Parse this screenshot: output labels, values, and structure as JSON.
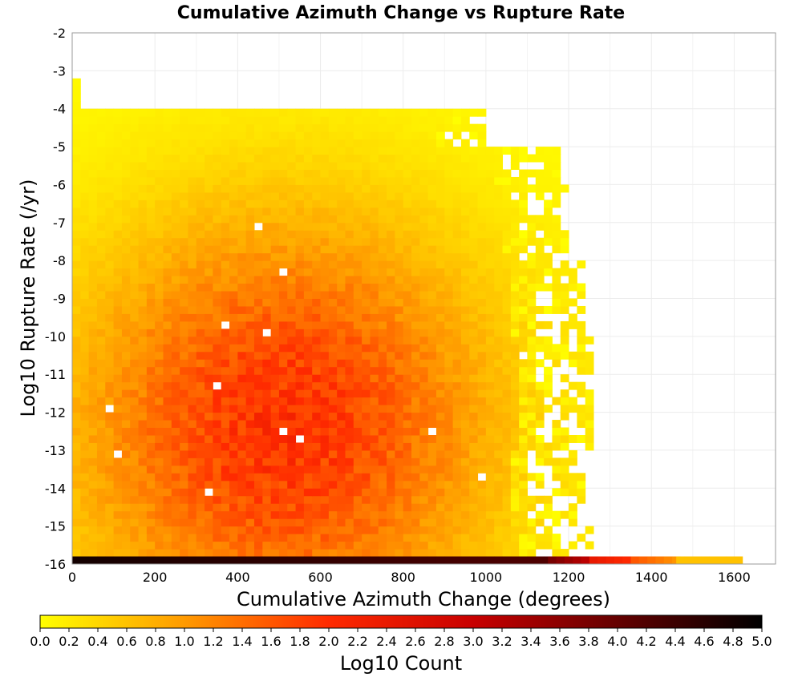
{
  "chart_data": {
    "type": "heatmap",
    "title": "Cumulative Azimuth Change vs Rupture Rate",
    "xlabel": "Cumulative Azimuth Change (degrees)",
    "ylabel": "Log10 Rupture Rate (/yr)",
    "xlim": [
      0,
      1700
    ],
    "ylim": [
      -16,
      -2
    ],
    "x_ticks": [
      "0",
      "200",
      "400",
      "600",
      "800",
      "1000",
      "1200",
      "1400",
      "1600"
    ],
    "y_ticks": [
      "-2",
      "-3",
      "-4",
      "-5",
      "-6",
      "-7",
      "-8",
      "-9",
      "-10",
      "-11",
      "-12",
      "-13",
      "-14",
      "-15",
      "-16"
    ],
    "bin_width_x": 20,
    "bin_width_y": 0.2,
    "grid": true,
    "colorbar": {
      "label": "Log10 Count",
      "min": 0.0,
      "max": 5.0,
      "ticks": [
        "0.0",
        "0.2",
        "0.4",
        "0.6",
        "0.8",
        "1.0",
        "1.2",
        "1.4",
        "1.6",
        "1.8",
        "2.0",
        "2.2",
        "2.4",
        "2.6",
        "2.8",
        "3.0",
        "3.2",
        "3.4",
        "3.6",
        "3.8",
        "4.0",
        "4.2",
        "4.4",
        "4.6",
        "4.8",
        "5.0"
      ],
      "colors": [
        "#ffff00",
        "#ff9a00",
        "#ff2a00",
        "#c80000",
        "#640000",
        "#000000"
      ]
    },
    "bottom_row": {
      "y": -16,
      "segments": [
        {
          "x_from": 0,
          "x_to": 1150,
          "log10_count": 4.8
        },
        {
          "x_from": 1150,
          "x_to": 1250,
          "log10_count": 3.8
        },
        {
          "x_from": 1250,
          "x_to": 1350,
          "log10_count": 2.4
        },
        {
          "x_from": 1350,
          "x_to": 1460,
          "log10_count": 1.6
        },
        {
          "x_from": 1460,
          "x_to": 1620,
          "log10_count": 0.6
        }
      ]
    },
    "extent_by_row": [
      {
        "y_from": -16,
        "y_to": -15,
        "x_max": 1260
      },
      {
        "y_from": -15,
        "y_to": -13,
        "x_max": 1240
      },
      {
        "y_from": -13,
        "y_to": -10,
        "x_max": 1260
      },
      {
        "y_from": -10,
        "y_to": -8,
        "x_max": 1240
      },
      {
        "y_from": -8,
        "y_to": -6,
        "x_max": 1200
      },
      {
        "y_from": -6,
        "y_to": -5,
        "x_max": 1180
      },
      {
        "y_from": -5,
        "y_to": -4,
        "x_max": 1000
      },
      {
        "y_from": -4,
        "y_to": -3.2,
        "x_max": 20
      }
    ],
    "peak": {
      "x": 500,
      "y": -12.5,
      "log10_count": 1.95
    }
  }
}
